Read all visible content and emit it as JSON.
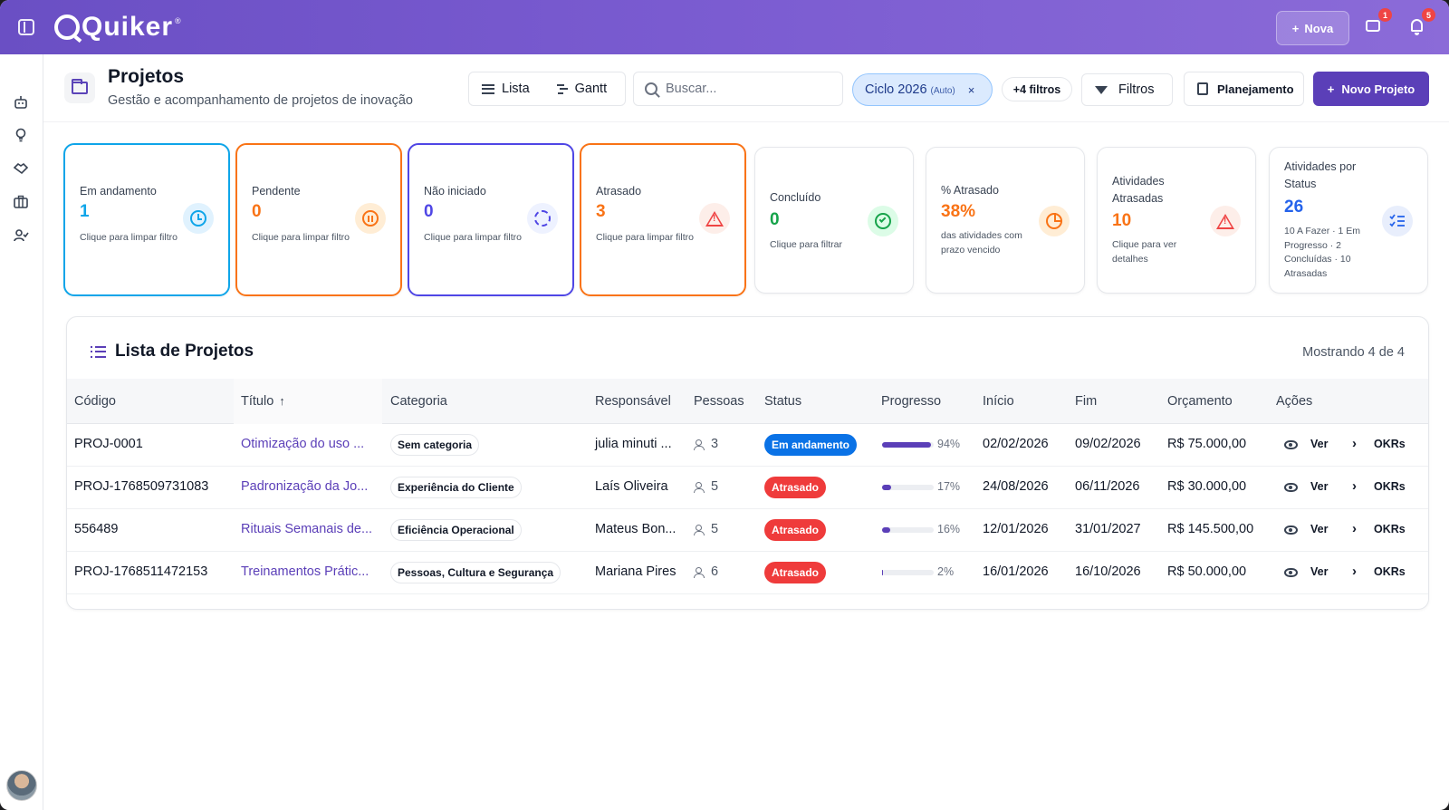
{
  "app": {
    "brand": "Quiker",
    "brand_mark": "®"
  },
  "topbar": {
    "new_button": "Nova",
    "chat_badge": "1",
    "notifications_badge": "5"
  },
  "header": {
    "title": "Projetos",
    "subtitle": "Gestão e acompanhamento de projetos de inovação",
    "view_list": "Lista",
    "view_gantt": "Gantt",
    "search_placeholder": "Buscar...",
    "cycle_chip": "Ciclo 2026",
    "cycle_auto": "(Auto)",
    "cycle_remove": "×",
    "extra_filters": "+4 filtros",
    "filters_button": "Filtros",
    "planning_button": "Planejamento",
    "new_project_button": "Novo Projeto"
  },
  "cards": [
    {
      "label": "Em andamento",
      "value": "1",
      "hint": "Clique para limpar filtro",
      "color": "#0ea5e9"
    },
    {
      "label": "Pendente",
      "value": "0",
      "hint": "Clique para limpar filtro",
      "color": "#f97316"
    },
    {
      "label": "Não iniciado",
      "value": "0",
      "hint": "Clique para limpar filtro",
      "color": "#4f46e5"
    },
    {
      "label": "Atrasado",
      "value": "3",
      "hint": "Clique para limpar filtro",
      "color": "#f97316"
    },
    {
      "label": "Concluído",
      "value": "0",
      "hint": "Clique para filtrar",
      "color": "#16a34a"
    },
    {
      "label": "% Atrasado",
      "value": "38%",
      "hint": "das atividades com prazo vencido",
      "color": "#f97316"
    },
    {
      "label": "Atividades Atrasadas",
      "value": "10",
      "hint": "Clique para ver detalhes",
      "color": "#f97316"
    },
    {
      "label": "Atividades por Status",
      "value": "26",
      "hint": "10 A Fazer · 1 Em Progresso · 2 Concluídas · 10 Atrasadas",
      "color": "#2563eb"
    }
  ],
  "table": {
    "title": "Lista de Projetos",
    "showing": "Mostrando 4 de 4",
    "columns": {
      "code": "Código",
      "title": "Título",
      "sort_arrow": "↑",
      "category": "Categoria",
      "owner": "Responsável",
      "people": "Pessoas",
      "status": "Status",
      "progress": "Progresso",
      "start": "Início",
      "end": "Fim",
      "budget": "Orçamento",
      "actions": "Ações"
    },
    "action_view": "Ver",
    "action_okrs": "OKRs",
    "rows": [
      {
        "code": "PROJ-0001",
        "title": "Otimização do uso ...",
        "category": "Sem categoria",
        "owner": "julia minuti ...",
        "people": "3",
        "status": "Em andamento",
        "progress": 94,
        "progress_label": "94%",
        "start": "02/02/2026",
        "end": "09/02/2026",
        "budget": "R$ 75.000,00"
      },
      {
        "code": "PROJ-1768509731083",
        "title": "Padronização da Jo...",
        "category": "Experiência do Cliente",
        "owner": "Laís Oliveira",
        "people": "5",
        "status": "Atrasado",
        "progress": 17,
        "progress_label": "17%",
        "start": "24/08/2026",
        "end": "06/11/2026",
        "budget": "R$ 30.000,00"
      },
      {
        "code": "556489",
        "title": "Rituais Semanais de...",
        "category": "Eficiência Operacional",
        "owner": "Mateus Bon...",
        "people": "5",
        "status": "Atrasado",
        "progress": 16,
        "progress_label": "16%",
        "start": "12/01/2026",
        "end": "31/01/2027",
        "budget": "R$ 145.500,00"
      },
      {
        "code": "PROJ-1768511472153",
        "title": "Treinamentos Prátic...",
        "category": "Pessoas, Cultura e Segurança",
        "owner": "Mariana Pires",
        "people": "6",
        "status": "Atrasado",
        "progress": 2,
        "progress_label": "2%",
        "start": "16/01/2026",
        "end": "16/10/2026",
        "budget": "R$ 50.000,00"
      }
    ],
    "status_colors": {
      "Em andamento": "#0a72e6",
      "Atrasado": "#ef3b3b"
    }
  }
}
